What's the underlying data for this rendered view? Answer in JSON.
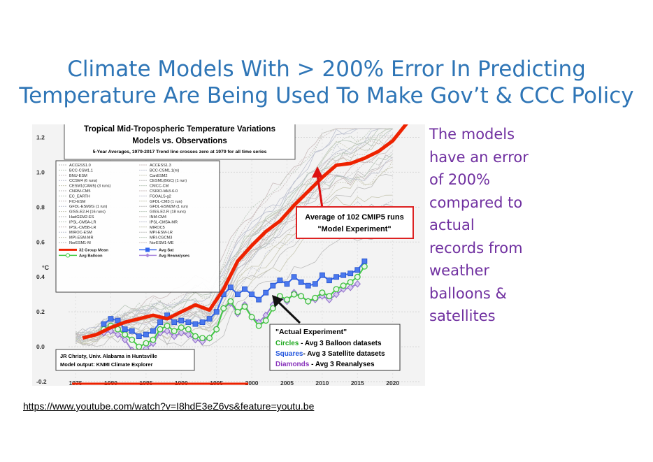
{
  "slide": {
    "title_line1": "Climate Models With > 200% Error In Predicting",
    "title_line2": "Temperature Are Being Used To Make Gov’t & CCC Policy",
    "side_note": [
      "The models",
      "have an error",
      "of 200%",
      "compared to",
      "actual",
      "records from",
      "weather",
      "balloons &",
      "satellites"
    ],
    "source_url": "https://www.youtube.com/watch?v=I8hdE3eZ6vs&feature=youtu.be"
  },
  "chart_data": {
    "type": "line",
    "title": "Tropical Mid-Tropospheric Temperature Variations",
    "subtitle": "Models vs. Observations",
    "subtitle2": "5-Year Averages, 1979-2017 Trend line crosses zero at 1979 for all time series",
    "ylabel": "°C",
    "xlim": [
      1974,
      2024
    ],
    "ylim": [
      -0.2,
      1.25
    ],
    "xticks": [
      1975,
      1980,
      1985,
      1990,
      1995,
      2000,
      2005,
      2010,
      2015,
      2020
    ],
    "yticks": [
      -0.2,
      0.0,
      0.2,
      0.4,
      0.6,
      0.8,
      1.0,
      1.2
    ],
    "ytick_labels": [
      "-0.2",
      "0.0",
      "0.2",
      "0.4",
      "0.6",
      "0.8",
      "1.0",
      "1.2"
    ],
    "legend_models_left": [
      "ACCESS1.0",
      "BCC-CSM1.1",
      "BNU-ESM",
      "CCSM4 (6 runs)",
      "CESM1(CAM5) (3 runs)",
      "CNRM-CM5",
      "EC_EARTH",
      "FIO-ESM",
      "GFDL-ESM2G (1 run)",
      "GISS-E2-H (16 runs)",
      "HadGEM2-ES",
      "IPSL-CM5A-LR",
      "IPSL-CM5B-LR",
      "MIROC-ESM",
      "MPI-ESM-MR",
      "NorESM1-M"
    ],
    "legend_models_right": [
      "ACCESS1.3",
      "BCC-CSM1.1(m)",
      "CanESM2",
      "CESM1(BGC) (1 run)",
      "CMCC-CM",
      "CSIRO-Mk3-6-0",
      "FGOALS-g2",
      "GFDL-CM3 (1 run)",
      "GFDL-ESM2M (1 run)",
      "GISS-E2-R (18 runs)",
      "INM-CM4",
      "IPSL-CM5A-MR",
      "MIROC5",
      "MPI-ESM-LR",
      "MRI-CGCM3",
      "NorESM1-ME"
    ],
    "legend_summary": [
      "32 Group Mean",
      "Avg Sat",
      "Avg Balloon",
      "Avg Reanalyses"
    ],
    "colors": {
      "model_mean": "#ee2200",
      "satellite": "#3366ee",
      "balloon": "#44cc44",
      "reanalyses": "#aa88dd",
      "spaghetti": "#bdbdbd",
      "arrow_red": "#dd1111",
      "box_border": "#dd2222"
    },
    "annotations": {
      "model_box_line1": "Average of 102 CMIP5 runs",
      "model_box_line2": "\"Model Experiment\"",
      "actual_title": "\"Actual Experiment\"",
      "actual_line1_key": "Circles",
      "actual_line1_rest": " - Avg 3 Balloon datasets",
      "actual_line2_key": "Squares",
      "actual_line2_rest": "- Avg 3 Satellite datasets",
      "actual_line3_key": "Diamonds",
      "actual_line3_rest": " - Avg 3 Reanalyses",
      "credit_line1": "JR Christy, Univ. Alabama in Huntsville",
      "credit_line2": "Model output: KNMI Climate Explorer"
    },
    "series": [
      {
        "name": "32 Group Mean",
        "x": [
          1976,
          1978,
          1980,
          1982,
          1984,
          1986,
          1988,
          1990,
          1992,
          1994,
          1996,
          1998,
          2000,
          2002,
          2004,
          2006,
          2008,
          2010,
          2012,
          2014,
          2016,
          2018,
          2020,
          2022
        ],
        "values": [
          0.05,
          0.07,
          0.11,
          0.14,
          0.16,
          0.18,
          0.16,
          0.2,
          0.24,
          0.21,
          0.33,
          0.49,
          0.58,
          0.66,
          0.72,
          0.81,
          0.89,
          0.97,
          1.04,
          1.05,
          1.08,
          1.12,
          1.18,
          1.28
        ]
      },
      {
        "name": "Avg Sat",
        "x": [
          1979,
          1980,
          1981,
          1982,
          1983,
          1984,
          1985,
          1986,
          1987,
          1988,
          1989,
          1990,
          1991,
          1992,
          1993,
          1994,
          1995,
          1996,
          1997,
          1998,
          1999,
          2000,
          2001,
          2002,
          2003,
          2004,
          2005,
          2006,
          2007,
          2008,
          2009,
          2010,
          2011,
          2012,
          2013,
          2014,
          2015,
          2016
        ],
        "values": [
          0.13,
          0.16,
          0.15,
          0.1,
          0.09,
          0.06,
          0.07,
          0.09,
          0.14,
          0.18,
          0.14,
          0.15,
          0.14,
          0.13,
          0.14,
          0.16,
          0.2,
          0.3,
          0.34,
          0.3,
          0.33,
          0.3,
          0.27,
          0.31,
          0.35,
          0.38,
          0.36,
          0.4,
          0.37,
          0.35,
          0.36,
          0.41,
          0.38,
          0.4,
          0.41,
          0.42,
          0.44,
          0.49
        ]
      },
      {
        "name": "Avg Balloon",
        "x": [
          1979,
          1980,
          1981,
          1982,
          1983,
          1984,
          1985,
          1986,
          1987,
          1988,
          1989,
          1990,
          1991,
          1992,
          1993,
          1994,
          1995,
          1996,
          1997,
          1998,
          1999,
          2000,
          2001,
          2002,
          2003,
          2004,
          2005,
          2006,
          2007,
          2008,
          2009,
          2010,
          2011,
          2012,
          2013,
          2014,
          2015,
          2016
        ],
        "values": [
          0.1,
          0.12,
          0.1,
          0.07,
          0.04,
          0.0,
          0.02,
          0.04,
          0.1,
          0.12,
          0.09,
          0.11,
          0.1,
          0.06,
          0.05,
          0.05,
          0.1,
          0.22,
          0.26,
          0.2,
          0.23,
          0.17,
          0.12,
          0.15,
          0.22,
          0.29,
          0.27,
          0.3,
          0.29,
          0.26,
          0.28,
          0.31,
          0.29,
          0.33,
          0.35,
          0.37,
          0.4,
          0.46
        ]
      },
      {
        "name": "Avg Reanalyses",
        "x": [
          1979,
          1980,
          1981,
          1982,
          1983,
          1984,
          1985,
          1986,
          1987,
          1988,
          1989,
          1990,
          1991,
          1992,
          1993,
          1994,
          1995,
          1996,
          1997,
          1998,
          1999,
          2000,
          2001,
          2002,
          2003,
          2004,
          2005,
          2006,
          2007,
          2008,
          2009,
          2010,
          2011,
          2012,
          2013,
          2014,
          2015
        ],
        "values": [
          0.08,
          0.09,
          0.07,
          0.04,
          -0.02,
          -0.04,
          -0.01,
          0.02,
          0.08,
          0.09,
          0.06,
          0.08,
          0.07,
          0.04,
          0.03,
          0.05,
          0.1,
          0.22,
          0.25,
          0.19,
          0.24,
          0.17,
          0.14,
          0.18,
          0.24,
          0.28,
          0.26,
          0.31,
          0.29,
          0.26,
          0.27,
          0.29,
          0.27,
          0.3,
          0.33,
          0.34,
          0.36
        ]
      }
    ]
  }
}
